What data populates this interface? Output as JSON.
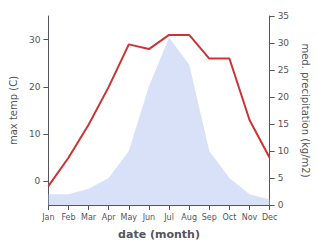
{
  "chart_data": {
    "type": "line",
    "xlabel": "date (month)",
    "ylabel": "max temp (C)",
    "y2label": "med. precipitation (kg/m2)",
    "categories": [
      "Jan",
      "Feb",
      "Mar",
      "Apr",
      "May",
      "Jun",
      "Jul",
      "Aug",
      "Sep",
      "Oct",
      "Nov",
      "Dec"
    ],
    "series": [
      {
        "type": "area",
        "axis": "y2",
        "color": "#b8c8f0",
        "values": [
          2,
          2,
          3,
          5,
          10,
          22,
          31,
          26,
          10,
          5,
          2,
          1
        ]
      },
      {
        "type": "line",
        "color": "#cc3333",
        "values": [
          -1,
          5,
          12,
          20,
          29,
          28,
          31,
          31,
          26,
          26,
          13,
          5
        ]
      }
    ],
    "ylim": [
      -5,
      35
    ],
    "yticks": [
      0,
      10,
      20,
      30
    ],
    "y2lim": [
      0,
      35
    ],
    "y2ticks": [
      0,
      5,
      10,
      15,
      20,
      25,
      30,
      35
    ],
    "grid": false
  }
}
